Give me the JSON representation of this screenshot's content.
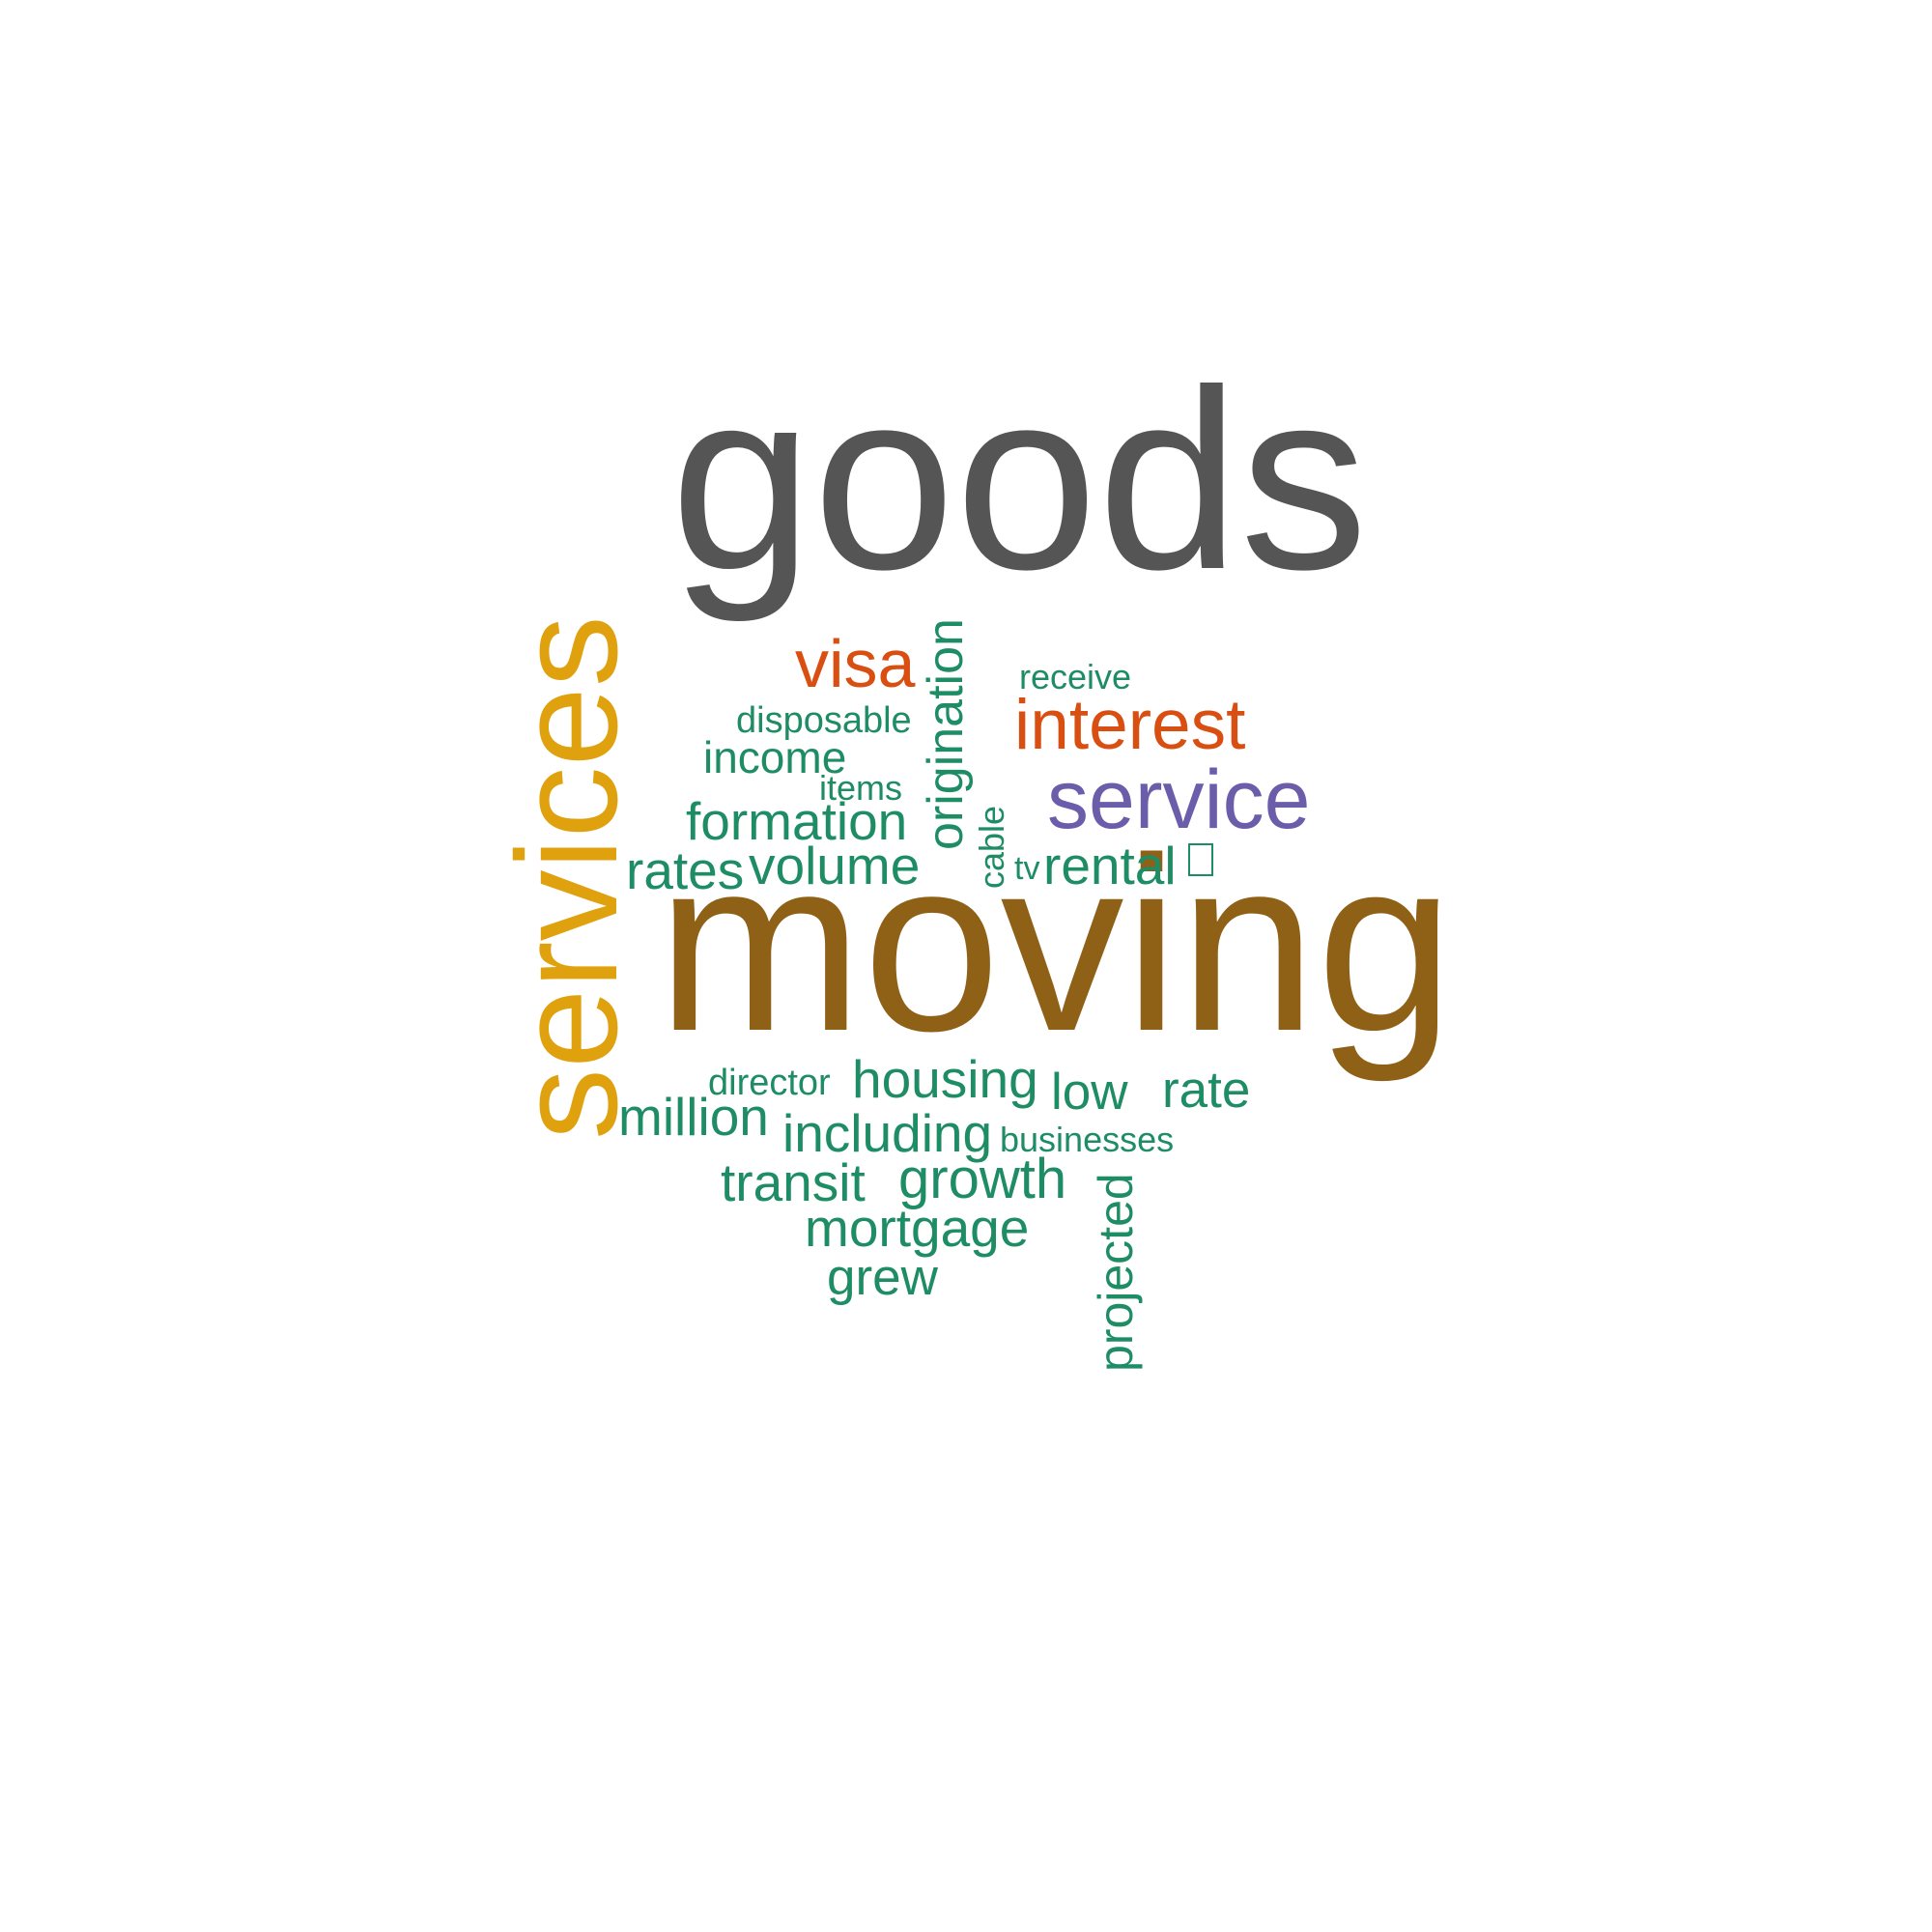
{
  "colors": {
    "dark_gray": "#555555",
    "brown": "#8F6117",
    "gold": "#E0A10F",
    "orange": "#D94E11",
    "purple": "#6C5DAA",
    "green": "#1E8C65"
  },
  "words": [
    {
      "text": "goods",
      "color": "dark_gray",
      "weight": 1.0,
      "orientation": "horizontal"
    },
    {
      "text": "moving",
      "color": "brown",
      "weight": 0.97,
      "orientation": "horizontal"
    },
    {
      "text": "services",
      "color": "gold",
      "weight": 0.7,
      "orientation": "vertical"
    },
    {
      "text": "service",
      "color": "purple",
      "weight": 0.32,
      "orientation": "horizontal"
    },
    {
      "text": "interest",
      "color": "orange",
      "weight": 0.28,
      "orientation": "horizontal"
    },
    {
      "text": "visa",
      "color": "orange",
      "weight": 0.27,
      "orientation": "horizontal"
    },
    {
      "text": "origination",
      "color": "green",
      "weight": 0.2,
      "orientation": "vertical"
    },
    {
      "text": "receive",
      "color": "green",
      "weight": 0.14,
      "orientation": "horizontal"
    },
    {
      "text": "disposable",
      "color": "green",
      "weight": 0.15,
      "orientation": "horizontal"
    },
    {
      "text": "income",
      "color": "green",
      "weight": 0.18,
      "orientation": "horizontal"
    },
    {
      "text": "items",
      "color": "green",
      "weight": 0.14,
      "orientation": "horizontal"
    },
    {
      "text": "formation",
      "color": "green",
      "weight": 0.2,
      "orientation": "horizontal"
    },
    {
      "text": "cable",
      "color": "green",
      "weight": 0.14,
      "orientation": "vertical"
    },
    {
      "text": "rates",
      "color": "green",
      "weight": 0.21,
      "orientation": "horizontal"
    },
    {
      "text": "volume",
      "color": "green",
      "weight": 0.21,
      "orientation": "horizontal"
    },
    {
      "text": "tv",
      "color": "green",
      "weight": 0.13,
      "orientation": "horizontal"
    },
    {
      "text": "rental",
      "color": "green",
      "weight": 0.21,
      "orientation": "horizontal"
    },
    {
      "text": "",
      "color": "green",
      "weight": 0.14,
      "orientation": "horizontal"
    },
    {
      "text": "director",
      "color": "green",
      "weight": 0.15,
      "orientation": "horizontal"
    },
    {
      "text": "housing",
      "color": "green",
      "weight": 0.21,
      "orientation": "horizontal"
    },
    {
      "text": "low",
      "color": "green",
      "weight": 0.2,
      "orientation": "horizontal"
    },
    {
      "text": "rate",
      "color": "green",
      "weight": 0.2,
      "orientation": "horizontal"
    },
    {
      "text": "million",
      "color": "green",
      "weight": 0.21,
      "orientation": "horizontal"
    },
    {
      "text": "including",
      "color": "green",
      "weight": 0.21,
      "orientation": "horizontal"
    },
    {
      "text": "businesses",
      "color": "green",
      "weight": 0.14,
      "orientation": "horizontal"
    },
    {
      "text": "transit",
      "color": "green",
      "weight": 0.21,
      "orientation": "horizontal"
    },
    {
      "text": "growth",
      "color": "green",
      "weight": 0.22,
      "orientation": "horizontal"
    },
    {
      "text": "mortgage",
      "color": "green",
      "weight": 0.21,
      "orientation": "horizontal"
    },
    {
      "text": "grew",
      "color": "green",
      "weight": 0.2,
      "orientation": "horizontal"
    },
    {
      "text": "projected",
      "color": "green",
      "weight": 0.19,
      "orientation": "vertical"
    }
  ]
}
